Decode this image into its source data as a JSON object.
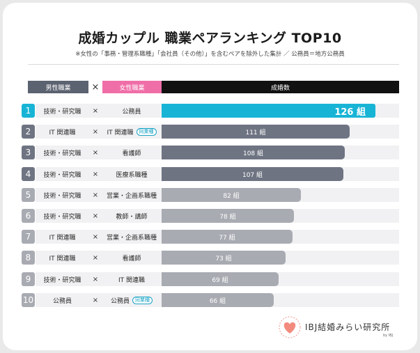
{
  "title": "成婚カップル 職業ペアランキング TOP10",
  "note": "※女性の「事務・管理系職種」「会社員（その他）」を含むペアを除外した集計 ／ 公務員＝地方公務員",
  "headers": {
    "male": "男性職業",
    "times": "×",
    "female": "女性職業",
    "count": "成婚数"
  },
  "same_tag": "同業種",
  "times_symbol": "×",
  "logo": {
    "text": "IBJ結婚みらい研究所",
    "sub": "by IBJ"
  },
  "colors": {
    "top_bar": "#18b4d6",
    "dark_bar": "#6e7482",
    "light_bar": "#a8abb2",
    "top_badge": "#18b4d6",
    "dark_badge": "#6e7482",
    "light_badge": "#a8abb2"
  },
  "chart_data": {
    "type": "bar",
    "orientation": "horizontal",
    "xlim": [
      0,
      140
    ],
    "unit": "組",
    "rows": [
      {
        "rank": "1",
        "male": "技術・研究職",
        "female": "公務員",
        "same": false,
        "value": 126,
        "label": "126 組",
        "tier": "top"
      },
      {
        "rank": "2",
        "male": "IT 関連職",
        "female": "IT 関連職",
        "same": true,
        "value": 111,
        "label": "111 組",
        "tier": "dark"
      },
      {
        "rank": "3",
        "male": "技術・研究職",
        "female": "看護師",
        "same": false,
        "value": 108,
        "label": "108 組",
        "tier": "dark"
      },
      {
        "rank": "4",
        "male": "技術・研究職",
        "female": "医療系職種",
        "same": false,
        "value": 107,
        "label": "107 組",
        "tier": "dark"
      },
      {
        "rank": "5",
        "male": "技術・研究職",
        "female": "営業・企画系職種",
        "same": false,
        "value": 82,
        "label": "82 組",
        "tier": "light"
      },
      {
        "rank": "6",
        "male": "技術・研究職",
        "female": "教師・講師",
        "same": false,
        "value": 78,
        "label": "78 組",
        "tier": "light"
      },
      {
        "rank": "7",
        "male": "IT 関連職",
        "female": "営業・企画系職種",
        "same": false,
        "value": 77,
        "label": "77 組",
        "tier": "light"
      },
      {
        "rank": "8",
        "male": "IT 関連職",
        "female": "看護師",
        "same": false,
        "value": 73,
        "label": "73 組",
        "tier": "light"
      },
      {
        "rank": "9",
        "male": "技術・研究職",
        "female": "IT 関連職",
        "same": false,
        "value": 69,
        "label": "69 組",
        "tier": "light"
      },
      {
        "rank": "10",
        "male": "公務員",
        "female": "公務員",
        "same": true,
        "value": 66,
        "label": "66 組",
        "tier": "light"
      }
    ]
  }
}
